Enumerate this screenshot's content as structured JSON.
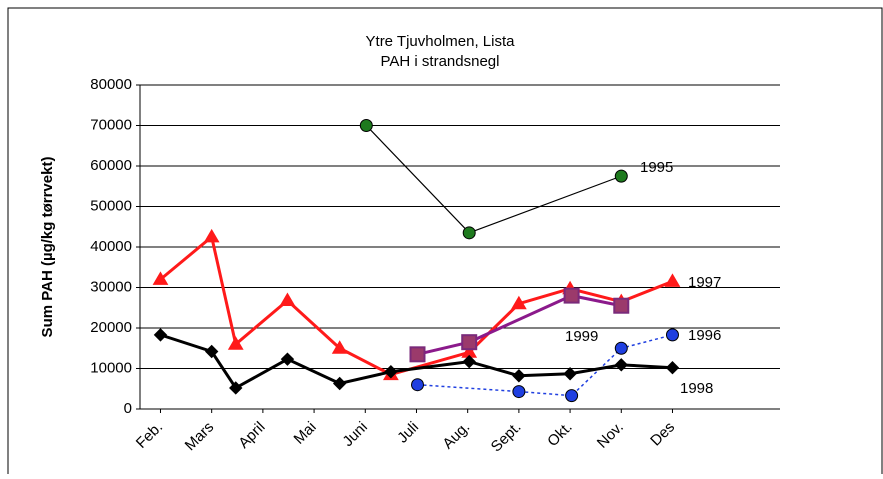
{
  "chart_data": {
    "type": "line",
    "title": "Ytre Tjuvholmen, Lista",
    "subtitle": "PAH i strandsnegl",
    "ylabel": "Sum PAH (µg/kg tørrvekt)",
    "xlim": [
      1.6,
      14.1
    ],
    "xticks": [
      {
        "value": 2,
        "label": "Feb."
      },
      {
        "value": 3,
        "label": "Mars"
      },
      {
        "value": 4,
        "label": "April"
      },
      {
        "value": 5,
        "label": "Mai"
      },
      {
        "value": 6,
        "label": "Juni"
      },
      {
        "value": 7,
        "label": "Juli"
      },
      {
        "value": 8,
        "label": "Aug."
      },
      {
        "value": 9,
        "label": "Sept."
      },
      {
        "value": 10,
        "label": "Okt."
      },
      {
        "value": 11,
        "label": "Nov."
      },
      {
        "value": 12,
        "label": "Des"
      }
    ],
    "ylim": [
      0,
      80000
    ],
    "yticks": [
      0,
      10000,
      20000,
      30000,
      40000,
      50000,
      60000,
      70000,
      80000
    ],
    "grid": true,
    "series": [
      {
        "name": "1995",
        "color": "#000000",
        "marker_color": "#1e7a1e",
        "marker": "circle",
        "width": 1.2,
        "dash": "none",
        "x": [
          6.02,
          8.03,
          11
        ],
        "values": [
          70000,
          43500,
          57500
        ]
      },
      {
        "name": "1996",
        "color": "#1f3fe0",
        "marker_color": "#1f3fe0",
        "marker": "circle",
        "width": 1.5,
        "dash": "3 3",
        "x": [
          7.02,
          9.0,
          10.03,
          11,
          12
        ],
        "values": [
          6000,
          4300,
          3300,
          15000,
          18300
        ]
      },
      {
        "name": "1997",
        "color": "#ff1a1a",
        "marker_color": "#ff1a1a",
        "marker": "triangle",
        "width": 3,
        "dash": "none",
        "x": [
          2,
          3,
          3.47,
          4.48,
          5.5,
          6.5,
          8.03,
          9.0,
          10,
          11,
          12
        ],
        "values": [
          32000,
          42500,
          16000,
          26800,
          15000,
          8500,
          14000,
          26000,
          29700,
          26500,
          31500
        ]
      },
      {
        "name": "1998",
        "color": "#000000",
        "marker_color": "#000000",
        "marker": "diamond",
        "width": 3,
        "dash": "none",
        "x": [
          2,
          3,
          3.47,
          4.48,
          5.5,
          6.5,
          8.03,
          9.0,
          10,
          11,
          12
        ],
        "values": [
          18300,
          14200,
          5200,
          12300,
          6300,
          9200,
          11700,
          8200,
          8700,
          10900,
          10200
        ]
      },
      {
        "name": "1999",
        "color": "#8b1a8b",
        "marker_color": "#9b3a6b",
        "marker": "square",
        "width": 3,
        "dash": "none",
        "x": [
          7.02,
          8.03,
          10.03,
          11
        ],
        "values": [
          13500,
          16500,
          28000,
          25500
        ]
      }
    ]
  }
}
